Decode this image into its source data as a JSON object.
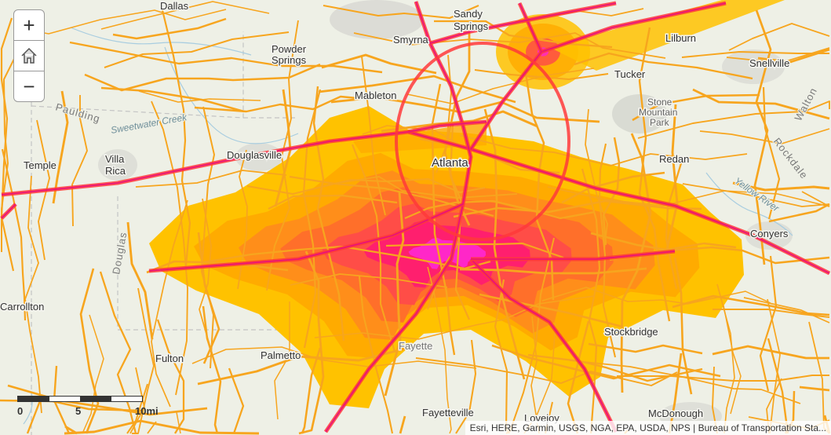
{
  "map": {
    "colors": {
      "background": "#eef0e6",
      "road_minor": "#f7a51e",
      "road_major": "#ff3a3a",
      "highway_core": "#e8107a",
      "heat": [
        "#ffc200",
        "#ffab00",
        "#ff8e1a",
        "#ff6f2a",
        "#ff4d47",
        "#ff1f6e",
        "#ff27c8"
      ]
    },
    "place_labels": [
      {
        "text": "Dallas"
      },
      {
        "text": "Powder"
      },
      {
        "text": "Springs"
      },
      {
        "text": "Smyrna"
      },
      {
        "text": "Sandy"
      },
      {
        "text": "Springs"
      },
      {
        "text": "Mableton"
      },
      {
        "text": "Lilburn"
      },
      {
        "text": "Snellville"
      },
      {
        "text": "Tucker"
      },
      {
        "text": "Stone"
      },
      {
        "text": "Mountain"
      },
      {
        "text": "Park"
      },
      {
        "text": "Redan"
      },
      {
        "text": "Temple"
      },
      {
        "text": "Villa"
      },
      {
        "text": "Rica"
      },
      {
        "text": "Douglasville"
      },
      {
        "text": "Atlanta"
      },
      {
        "text": "Conyers"
      },
      {
        "text": "Carrollton"
      },
      {
        "text": "Fulton"
      },
      {
        "text": "Palmetto"
      },
      {
        "text": "Fayette"
      },
      {
        "text": "Stockbridge"
      },
      {
        "text": "Fayetteville"
      },
      {
        "text": "Lovejoy"
      },
      {
        "text": "McDonough"
      }
    ],
    "admin_labels": [
      "Paulding",
      "Douglas",
      "Rockdale",
      "Walton"
    ],
    "water_labels": [
      "Sweetwater Creek",
      "Yellow River"
    ]
  },
  "controls": {
    "zoom_in": "+",
    "home_icon": "home-icon",
    "zoom_out": "−"
  },
  "scale": {
    "labels": [
      "0",
      "5",
      "10mi"
    ]
  },
  "attribution": "Esri, HERE, Garmin, USGS, NGA, EPA, USDA, NPS | Bureau of Transportation Sta..."
}
